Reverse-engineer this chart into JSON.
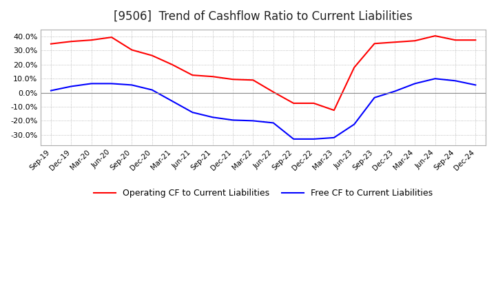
{
  "title": "[9506]  Trend of Cashflow Ratio to Current Liabilities",
  "x_labels": [
    "Sep-19",
    "Dec-19",
    "Mar-20",
    "Jun-20",
    "Sep-20",
    "Dec-20",
    "Mar-21",
    "Jun-21",
    "Sep-21",
    "Dec-21",
    "Mar-22",
    "Jun-22",
    "Sep-22",
    "Dec-22",
    "Mar-23",
    "Jun-23",
    "Sep-23",
    "Dec-23",
    "Mar-24",
    "Jun-24",
    "Sep-24",
    "Dec-24"
  ],
  "operating_cf": [
    0.348,
    0.365,
    0.375,
    0.395,
    0.305,
    0.265,
    0.2,
    0.125,
    0.115,
    0.095,
    0.09,
    0.005,
    -0.075,
    -0.075,
    -0.125,
    0.18,
    0.35,
    0.36,
    0.37,
    0.405,
    0.375,
    0.375
  ],
  "free_cf": [
    0.015,
    0.045,
    0.065,
    0.065,
    0.055,
    0.02,
    -0.06,
    -0.14,
    -0.175,
    -0.195,
    -0.2,
    -0.215,
    -0.33,
    -0.33,
    -0.32,
    -0.225,
    -0.035,
    0.01,
    0.065,
    0.1,
    0.085,
    0.055
  ],
  "operating_color": "#FF0000",
  "free_color": "#0000FF",
  "background_color": "#FFFFFF",
  "plot_bg_color": "#FFFFFF",
  "grid_color": "#AAAAAA",
  "ylim": [
    -0.375,
    0.45
  ],
  "yticks": [
    -0.3,
    -0.2,
    -0.1,
    0.0,
    0.1,
    0.2,
    0.3,
    0.4
  ],
  "title_fontsize": 12,
  "legend_labels": [
    "Operating CF to Current Liabilities",
    "Free CF to Current Liabilities"
  ]
}
